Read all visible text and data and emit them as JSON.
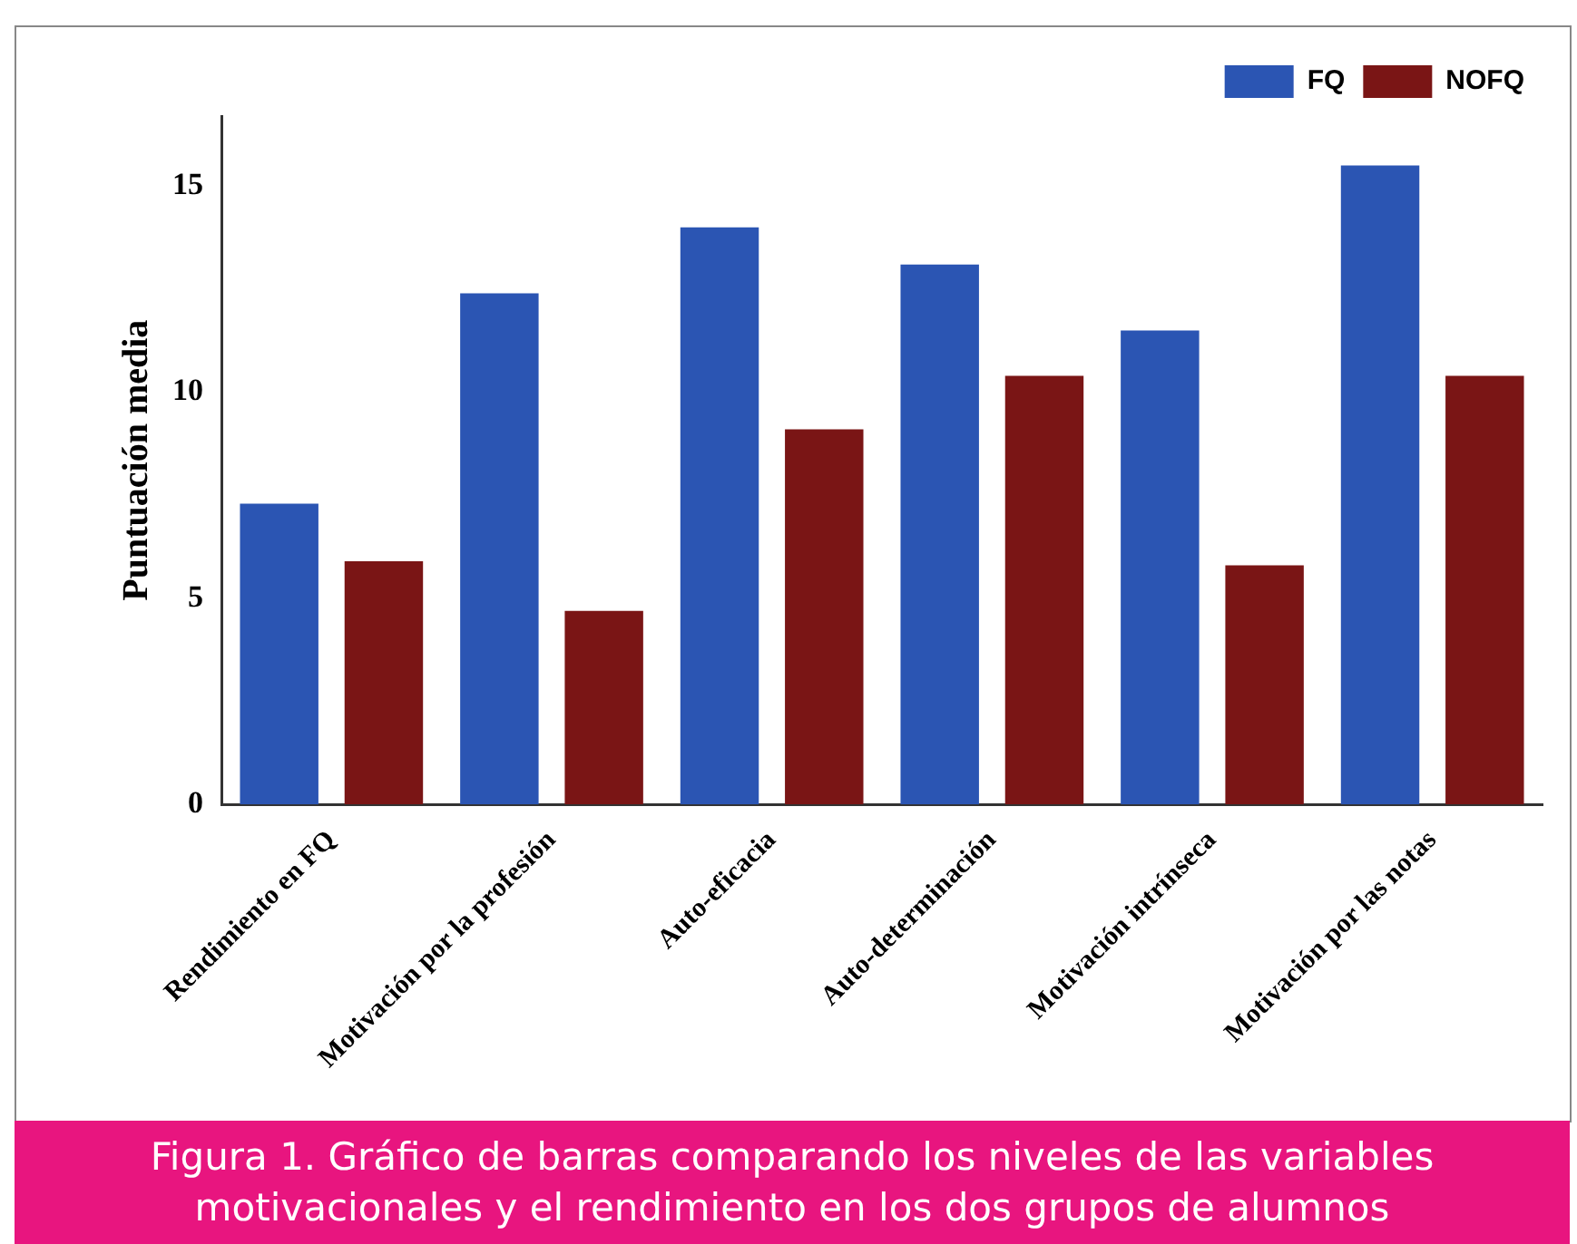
{
  "chart_data": {
    "type": "bar",
    "ylabel": "Puntuación media",
    "categories": [
      "Rendimiento en FQ",
      "Motivación por la profesión",
      "Auto-eficacia",
      "Auto-determinación",
      "Motivación intrínseca",
      "Motivación por las notas"
    ],
    "series": [
      {
        "name": "FQ",
        "color": "#2b55b3",
        "values": [
          7.3,
          12.4,
          14.0,
          13.1,
          11.5,
          15.5
        ]
      },
      {
        "name": "NOFQ",
        "color": "#7a1515",
        "values": [
          5.9,
          4.7,
          9.1,
          10.4,
          5.8,
          10.4
        ]
      }
    ],
    "ylim": [
      0,
      16.7
    ],
    "yticks": [
      0,
      5,
      10,
      15
    ],
    "grid": false,
    "legend": "top right",
    "annotations": [
      "Figura 1. Gráfico de barras comparando los niveles de las variables motivacionales y el rendimiento en los dos grupos de alumnos"
    ]
  }
}
